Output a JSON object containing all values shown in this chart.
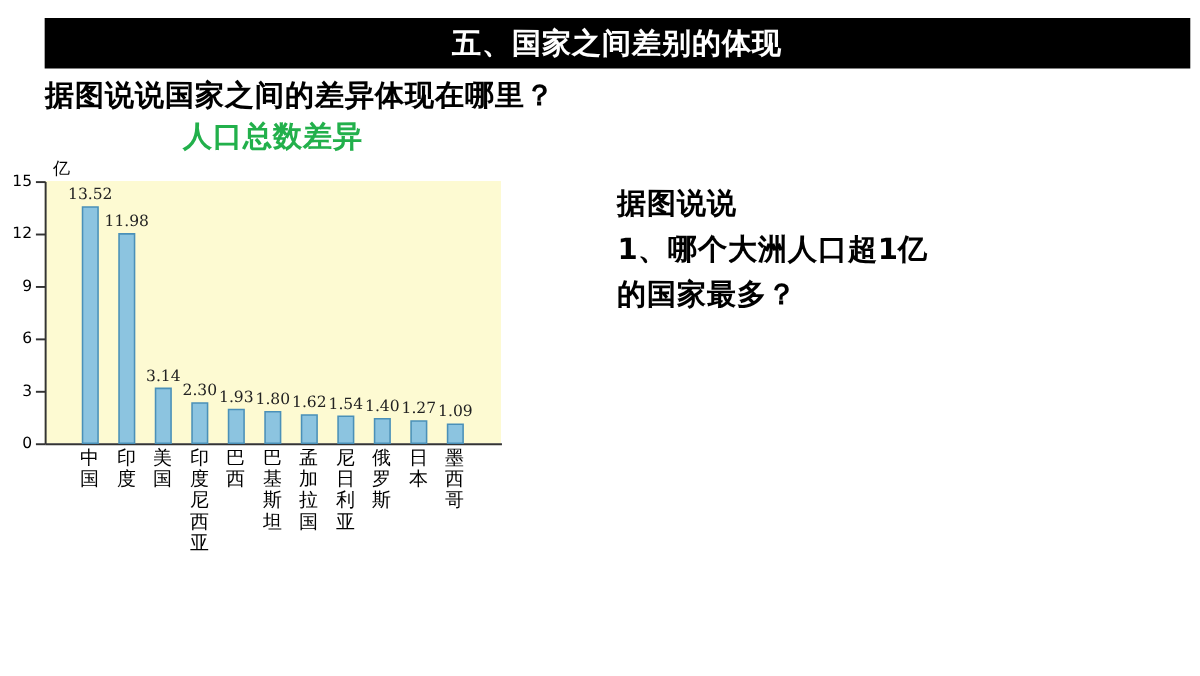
{
  "chart_data": {
    "type": "bar",
    "title": "人口总数差异",
    "ylabel": "亿",
    "categories": [
      "中国",
      "印度",
      "美国",
      "印度尼西亚",
      "巴西",
      "巴基斯坦",
      "孟加拉国",
      "尼日利亚",
      "俄罗斯",
      "日本",
      "墨西哥"
    ],
    "values": [
      13.52,
      11.98,
      3.14,
      2.3,
      1.93,
      1.8,
      1.62,
      1.54,
      1.4,
      1.27,
      1.09
    ],
    "value_labels": [
      "13.52",
      "11.98",
      "3.14",
      "2.30",
      "1.93",
      "1.80",
      "1.62",
      "1.54",
      "1.40",
      "1.27",
      "1.09"
    ],
    "color": "#8cc4e0",
    "ylim": [
      0,
      15
    ],
    "yticks": [
      0,
      3,
      6,
      9,
      12,
      15
    ],
    "grid": false,
    "annotations": [
      "五、国家之间差别的体现",
      "据图说说国家之间的差异体现在哪里？",
      "据图说说",
      "1、哪个大洲人口超1亿",
      "的国家最多？"
    ]
  }
}
